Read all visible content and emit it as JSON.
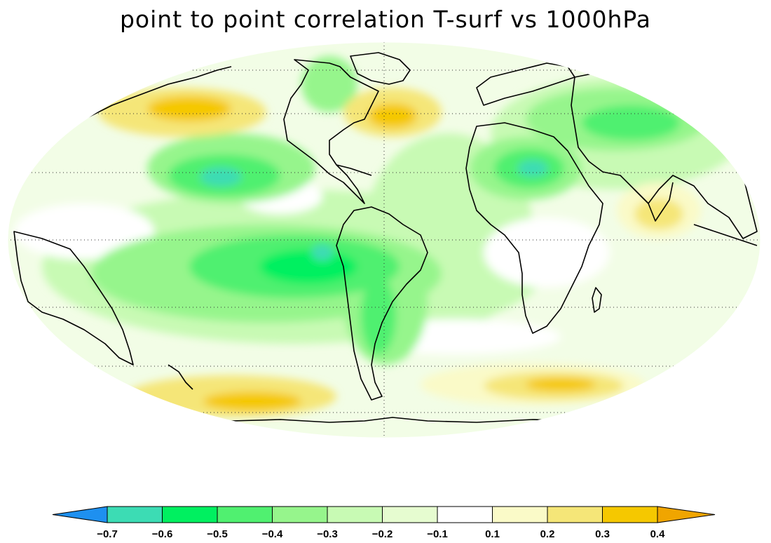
{
  "title": "point to point correlation T-surf vs 1000hPa",
  "projection": "mollweide",
  "colorbar": {
    "levels": [
      "-0.7",
      "-0.6",
      "-0.5",
      "-0.4",
      "-0.3",
      "-0.2",
      "-0.1",
      "0.1",
      "0.2",
      "0.3",
      "0.4"
    ],
    "colors": [
      "#1e90f0",
      "#3cdcb4",
      "#00f060",
      "#50f070",
      "#96f58c",
      "#c8fab4",
      "#e6fcd0",
      "#ffffff",
      "#fafac8",
      "#f5e678",
      "#f5c800",
      "#f0a500"
    ],
    "extend": "both"
  },
  "colors": {
    "very_neg": "#1e90f0",
    "neg_06": "#3cdcb4",
    "neg_05": "#00f060",
    "neg_04": "#50f070",
    "neg_03": "#96f58c",
    "neg_02": "#c8fab4",
    "neg_01": "#e6fcd0",
    "pos_01": "#fafac8",
    "pos_02": "#f5e678",
    "pos_03": "#f5c800",
    "pos_04": "#f0a500"
  }
}
